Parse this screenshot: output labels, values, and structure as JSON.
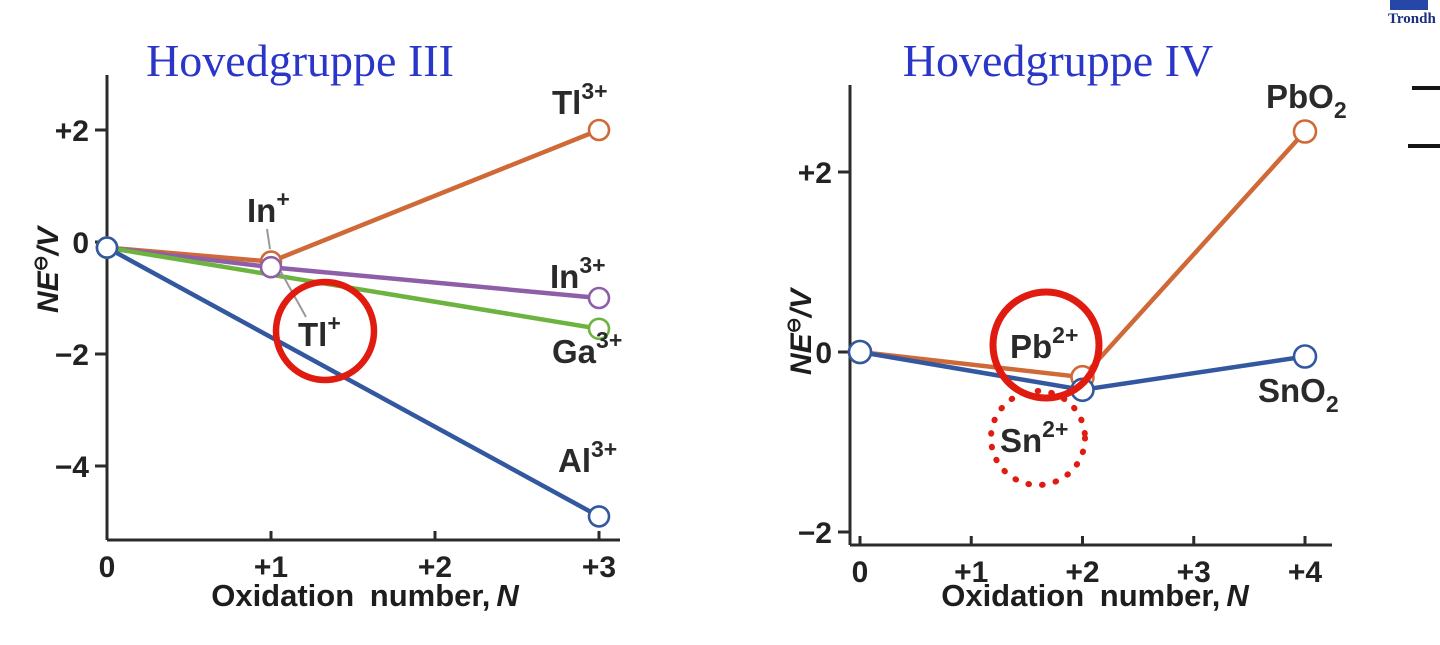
{
  "page": {
    "background": "#ffffff"
  },
  "logo": {
    "text": "Trondh",
    "block_color": "#2646a8",
    "text_color": "#1b2f7d"
  },
  "title_color": "#2a36c8",
  "annotation_color": "#e01b10",
  "chart_data": [
    {
      "type": "line",
      "title": "Hovedgruppe III",
      "xlabel": "Oxidation number, N",
      "xlabel_text": "Oxidation number,",
      "xlabel_var": "N",
      "ylabel": "NE⊖/V",
      "ylabel_var": "NE",
      "ylabel_sup": "⊖",
      "ylabel_rest": "/V",
      "xlim": [
        0,
        3
      ],
      "ylim": [
        -5.3,
        2.5
      ],
      "grid": false,
      "x_ticks": [
        {
          "value": 0,
          "label": "0"
        },
        {
          "value": 1,
          "label": "+1"
        },
        {
          "value": 2,
          "label": "+2"
        },
        {
          "value": 3,
          "label": "+3"
        }
      ],
      "y_ticks": [
        {
          "value": 2,
          "label": "+2"
        },
        {
          "value": 0,
          "label": "0"
        },
        {
          "value": -2,
          "label": "−2"
        },
        {
          "value": -4,
          "label": "−4"
        }
      ],
      "series": [
        {
          "name": "Tl",
          "color": "#cf6a38",
          "points": [
            [
              0,
              -0.1
            ],
            [
              1,
              -0.35
            ],
            [
              3,
              2.0
            ]
          ]
        },
        {
          "name": "In",
          "color": "#8e5fa8",
          "points": [
            [
              0,
              -0.1
            ],
            [
              1,
              -0.45
            ],
            [
              3,
              -1.0
            ]
          ]
        },
        {
          "name": "Ga",
          "color": "#6db33f",
          "points": [
            [
              0,
              -0.1
            ],
            [
              3,
              -1.55
            ]
          ]
        },
        {
          "name": "Al",
          "color": "#33589f",
          "points": [
            [
              0,
              -0.1
            ],
            [
              3,
              -4.9
            ]
          ]
        }
      ],
      "point_labels": [
        {
          "base": "Tl",
          "sup": "3+"
        },
        {
          "base": "In",
          "sup": "+"
        },
        {
          "base": "Tl",
          "sup": "+"
        },
        {
          "base": "In",
          "sup": "3+"
        },
        {
          "base": "Ga",
          "sup": "3+"
        },
        {
          "base": "Al",
          "sup": "3+"
        }
      ],
      "annotations": [
        {
          "type": "circle",
          "style": "solid",
          "color": "#e01b10",
          "around": "Tl+"
        }
      ]
    },
    {
      "type": "line",
      "title": "Hovedgruppe IV",
      "xlabel": "Oxidation number, N",
      "xlabel_text": "Oxidation number,",
      "xlabel_var": "N",
      "ylabel": "NE⊖/V",
      "ylabel_var": "NE",
      "ylabel_sup": "⊖",
      "ylabel_rest": "/V",
      "xlim": [
        0,
        4
      ],
      "ylim": [
        -2.2,
        2.9
      ],
      "grid": false,
      "x_ticks": [
        {
          "value": 0,
          "label": "0"
        },
        {
          "value": 1,
          "label": "+1"
        },
        {
          "value": 2,
          "label": "+2"
        },
        {
          "value": 3,
          "label": "+3"
        },
        {
          "value": 4,
          "label": "+4"
        }
      ],
      "y_ticks": [
        {
          "value": 2,
          "label": "+2"
        },
        {
          "value": 0,
          "label": "0"
        },
        {
          "value": -2,
          "label": "−2"
        }
      ],
      "series": [
        {
          "name": "Pb",
          "color": "#cf6a38",
          "points": [
            [
              0,
              0
            ],
            [
              2,
              -0.28
            ],
            [
              4,
              2.45
            ]
          ]
        },
        {
          "name": "Sn",
          "color": "#33589f",
          "points": [
            [
              0,
              0
            ],
            [
              2,
              -0.42
            ],
            [
              4,
              -0.05
            ]
          ]
        }
      ],
      "point_labels": [
        {
          "base": "PbO",
          "sub": "2"
        },
        {
          "base": "SnO",
          "sub": "2"
        },
        {
          "base": "Pb",
          "sup": "2+"
        },
        {
          "base": "Sn",
          "sup": "2+"
        }
      ],
      "annotations": [
        {
          "type": "circle",
          "style": "solid",
          "color": "#e01b10",
          "around": "Pb2+"
        },
        {
          "type": "circle",
          "style": "dotted",
          "color": "#e01b10",
          "around": "Sn2+"
        }
      ]
    }
  ]
}
